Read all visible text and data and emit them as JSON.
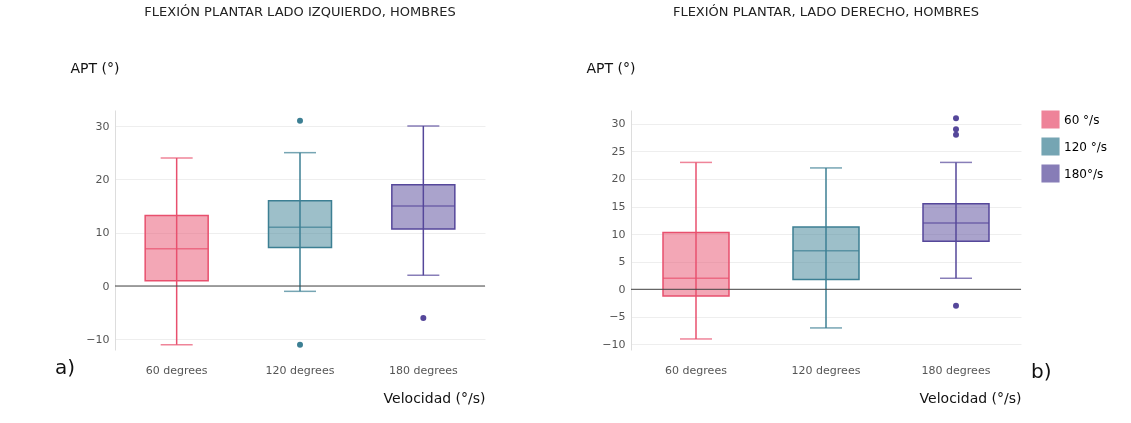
{
  "chart_data": [
    {
      "type": "box",
      "title": "FLEXIÓN PLANTAR LADO IZQUIERDO, HOMBRES",
      "ylabel": "APT (°)",
      "xlabel": "Velocidad (°/s)",
      "categories": [
        "60 degrees",
        "120 degrees",
        "180 degrees"
      ],
      "ylim": [
        -12,
        33
      ],
      "yticks": [
        -10,
        0,
        10,
        20,
        30
      ],
      "grid": "y",
      "legend": false,
      "annotations": [
        "a)"
      ],
      "ref_lines": [
        {
          "axis": "y",
          "value": 0,
          "color": "#444444"
        }
      ],
      "series": [
        {
          "color": "#e8506e",
          "boxes": [
            {
              "low": -11,
              "q1": 1,
              "median": 7,
              "q3": 13.2,
              "high": 24
            },
            null,
            null
          ]
        },
        {
          "color": "#3c7f93",
          "boxes": [
            null,
            {
              "low": -1,
              "q1": 7.2,
              "median": 11,
              "q3": 16,
              "high": 25,
              "outliers": [
                31,
                -11
              ]
            },
            null
          ]
        },
        {
          "color": "#55479a",
          "boxes": [
            null,
            null,
            {
              "low": 2,
              "q1": 10.7,
              "median": 15,
              "q3": 19,
              "high": 30,
              "outliers": [
                -6
              ]
            }
          ]
        }
      ]
    },
    {
      "type": "box",
      "title": "FLEXIÓN PLANTAR, LADO DERECHO, HOMBRES",
      "ylabel": "APT (°)",
      "xlabel": "Velocidad (°/s)",
      "categories": [
        "60 degrees",
        "120 degrees",
        "180 degrees"
      ],
      "ylim": [
        -11,
        32.5
      ],
      "yticks": [
        -10,
        -5,
        0,
        5,
        10,
        15,
        20,
        25,
        30
      ],
      "grid": "y",
      "legend": "top right",
      "annotations": [
        "b)"
      ],
      "ref_lines": [
        {
          "axis": "y",
          "value": 0,
          "color": "#444444"
        }
      ],
      "series": [
        {
          "name": "60 °/s",
          "color": "#e8506e",
          "boxes": [
            {
              "low": -9,
              "q1": -1.2,
              "median": 2,
              "q3": 10.3,
              "high": 23
            },
            null,
            null
          ]
        },
        {
          "name": "120 °/s",
          "color": "#3c7f93",
          "boxes": [
            null,
            {
              "low": -7,
              "q1": 1.8,
              "median": 7,
              "q3": 11.3,
              "high": 22
            },
            null
          ]
        },
        {
          "name": "180°/s",
          "color": "#55479a",
          "boxes": [
            null,
            null,
            {
              "low": 2,
              "q1": 8.7,
              "median": 12,
              "q3": 15.5,
              "high": 23,
              "outliers": [
                28,
                29,
                31,
                -3
              ]
            }
          ]
        }
      ]
    }
  ]
}
